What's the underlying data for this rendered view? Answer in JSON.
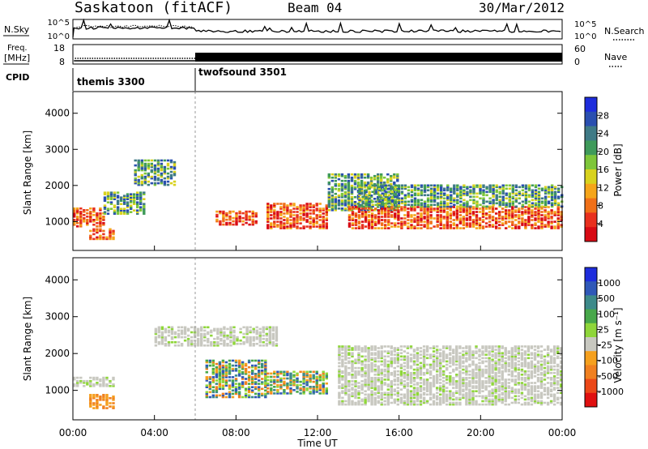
{
  "header": {
    "site_title": "Saskatoon (fitACF)",
    "beam": "Beam 04",
    "date": "30/Mar/2012"
  },
  "nsky_panel": {
    "left_label": "N.Sky",
    "right_label": "N.Search",
    "y_ticks_left": [
      "10^5",
      "10^0"
    ],
    "y_ticks_right": [
      "10^5",
      "10^0"
    ]
  },
  "freq_panel": {
    "left_label_line1": "Freq.",
    "left_label_line2": "[MHz]",
    "right_label": "Nave",
    "y_ticks_left": [
      "18",
      "8"
    ],
    "y_ticks_right": [
      "60",
      "0"
    ]
  },
  "cpid_panel": {
    "label": "CPID",
    "modes": [
      {
        "name": "themis 3300",
        "start_hour": 0,
        "end_hour": 6
      },
      {
        "name": "twofsound 3501",
        "start_hour": 6,
        "end_hour": 24
      }
    ]
  },
  "chart_data": [
    {
      "type": "heatmap",
      "panel": "power",
      "ylabel": "Slant Range [km]",
      "y_ticks": [
        "1000",
        "2000",
        "3000",
        "4000"
      ],
      "ylim_km": [
        200,
        4600
      ],
      "xlim_hours": [
        0,
        24
      ],
      "colorbar": {
        "label": "Power [dB]",
        "ticks": [
          "4",
          "8",
          "12",
          "16",
          "20",
          "24",
          "28"
        ],
        "colors": [
          "#1e2ddc",
          "#2a4fb0",
          "#3f7a86",
          "#3f9a5a",
          "#7ec63a",
          "#d8d21e",
          "#f5a51a",
          "#f07018",
          "#e8301e",
          "#d80a14"
        ]
      },
      "echo_regions_km": [
        {
          "from_hour": 0.0,
          "to_hour": 1.5,
          "range": [
            850,
            1350
          ],
          "level": "high"
        },
        {
          "from_hour": 0.8,
          "to_hour": 2.0,
          "range": [
            500,
            800
          ],
          "level": "high"
        },
        {
          "from_hour": 1.5,
          "to_hour": 3.5,
          "range": [
            1200,
            1800
          ],
          "level": "mid"
        },
        {
          "from_hour": 3.0,
          "to_hour": 5.0,
          "range": [
            2000,
            2700
          ],
          "level": "mid"
        },
        {
          "from_hour": 7.0,
          "to_hour": 9.0,
          "range": [
            900,
            1300
          ],
          "level": "high"
        },
        {
          "from_hour": 9.5,
          "to_hour": 12.5,
          "range": [
            800,
            1500
          ],
          "level": "high"
        },
        {
          "from_hour": 12.5,
          "to_hour": 16.0,
          "range": [
            1300,
            2300
          ],
          "level": "mid"
        },
        {
          "from_hour": 13.5,
          "to_hour": 24.0,
          "range": [
            800,
            1400
          ],
          "level": "high"
        },
        {
          "from_hour": 14.0,
          "to_hour": 24.0,
          "range": [
            1400,
            2000
          ],
          "level": "mid"
        }
      ]
    },
    {
      "type": "heatmap",
      "panel": "velocity",
      "ylabel": "Slant Range [km]",
      "xlabel": "Time UT",
      "y_ticks": [
        "1000",
        "2000",
        "3000",
        "4000"
      ],
      "x_ticks": [
        "00:00",
        "04:00",
        "08:00",
        "12:00",
        "16:00",
        "20:00",
        "00:00"
      ],
      "ylim_km": [
        200,
        4600
      ],
      "xlim_hours": [
        0,
        24
      ],
      "colorbar": {
        "label": "Velocity [m s⁻¹]",
        "ticks": [
          "1000",
          "500",
          "100",
          "25",
          "-25",
          "-100",
          "-500",
          "-1000"
        ],
        "colors": [
          "#1e2ddc",
          "#2f58b8",
          "#3d8a8a",
          "#48a84a",
          "#8fd63a",
          "#c8c8c0",
          "#f5a01e",
          "#f08020",
          "#ec4818",
          "#e01010"
        ]
      },
      "echo_regions_km": [
        {
          "from_hour": 0.0,
          "to_hour": 2.0,
          "range": [
            1100,
            1350
          ],
          "level": "ground"
        },
        {
          "from_hour": 0.8,
          "to_hour": 2.0,
          "range": [
            500,
            900
          ],
          "level": "neg_high"
        },
        {
          "from_hour": 4.0,
          "to_hour": 10.0,
          "range": [
            2200,
            2700
          ],
          "level": "ground"
        },
        {
          "from_hour": 6.5,
          "to_hour": 9.5,
          "range": [
            800,
            1800
          ],
          "level": "mixed"
        },
        {
          "from_hour": 9.5,
          "to_hour": 12.5,
          "range": [
            900,
            1500
          ],
          "level": "mixed"
        },
        {
          "from_hour": 13.0,
          "to_hour": 24.0,
          "range": [
            600,
            2200
          ],
          "level": "ground"
        }
      ]
    }
  ]
}
